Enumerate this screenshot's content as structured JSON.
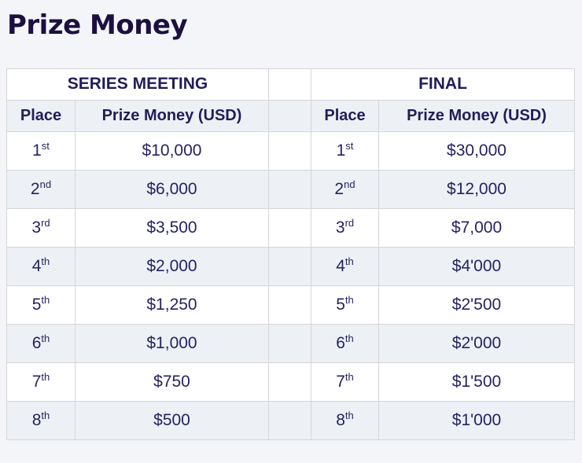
{
  "page": {
    "title": "Prize Money"
  },
  "colors": {
    "page_background": "#f3f5f9",
    "title_text": "#1d1040",
    "table_text": "#262263",
    "header_text": "#221d58",
    "row_stripe": "#edf0f5",
    "row_white": "#ffffff",
    "border": "#d6d6d6"
  },
  "table": {
    "group_headers": {
      "series": "SERIES MEETING",
      "final": "FINAL"
    },
    "column_headers": {
      "place": "Place",
      "prize": "Prize Money (USD)"
    },
    "rows": [
      {
        "place": "1",
        "suffix": "st",
        "series": "$10,000",
        "final": "$30,000"
      },
      {
        "place": "2",
        "suffix": "nd",
        "series": "$6,000",
        "final": "$12,000"
      },
      {
        "place": "3",
        "suffix": "rd",
        "series": "$3,500",
        "final": "$7,000"
      },
      {
        "place": "4",
        "suffix": "th",
        "series": "$2,000",
        "final": "$4'000"
      },
      {
        "place": "5",
        "suffix": "th",
        "series": "$1,250",
        "final": "$2'500"
      },
      {
        "place": "6",
        "suffix": "th",
        "series": "$1,000",
        "final": "$2'000"
      },
      {
        "place": "7",
        "suffix": "th",
        "series": "$750",
        "final": "$1'500"
      },
      {
        "place": "8",
        "suffix": "th",
        "series": "$500",
        "final": "$1'000"
      }
    ]
  }
}
